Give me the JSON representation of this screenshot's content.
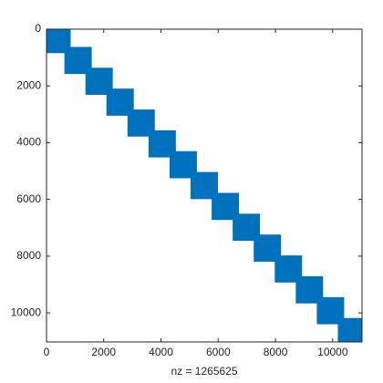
{
  "chart_data": {
    "type": "spy",
    "xlabel": "nz = 1265625",
    "color": "#0072bd",
    "blocks": [
      [
        0,
        845
      ],
      [
        625,
        1580
      ],
      [
        1360,
        2315
      ],
      [
        2095,
        3050
      ],
      [
        2830,
        3785
      ],
      [
        3565,
        4520
      ],
      [
        4300,
        5255
      ],
      [
        5035,
        5990
      ],
      [
        5770,
        6725
      ],
      [
        6505,
        7460
      ],
      [
        7240,
        8195
      ],
      [
        7975,
        8930
      ],
      [
        8710,
        9665
      ],
      [
        9445,
        10400
      ],
      [
        10180,
        11025
      ]
    ],
    "xlim": [
      0,
      11025
    ],
    "ylim": [
      0,
      11025
    ],
    "xticks": [
      0,
      2000,
      4000,
      6000,
      8000,
      10000
    ],
    "yticks": [
      0,
      2000,
      4000,
      6000,
      8000,
      10000
    ]
  }
}
